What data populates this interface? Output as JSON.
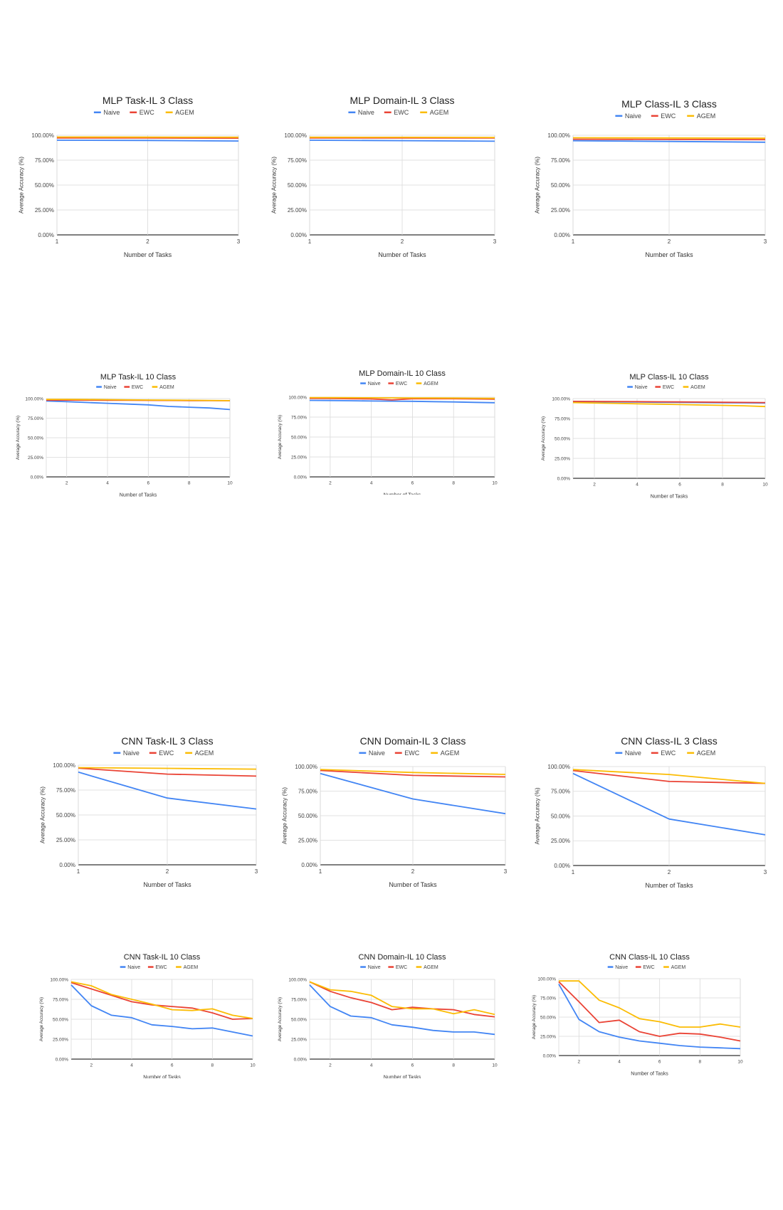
{
  "colors": {
    "naive": "#4285f4",
    "ewc": "#ea4335",
    "agem": "#fbbc04",
    "grid": "#d9d9d9",
    "axis": "#333333"
  },
  "chart_data": [
    {
      "type": "line",
      "title": "MLP Task-IL 3 Class",
      "xlabel": "Number of Tasks",
      "ylabel": "Average Accuracy (%)",
      "ylim": [
        0,
        100
      ],
      "yticks": [
        "100.00%",
        "75.00%",
        "50.00%",
        "25.00%",
        "0.00%"
      ],
      "x": [
        1,
        2,
        3
      ],
      "xticks": [
        "1",
        "2",
        "3"
      ],
      "legend": "top-left",
      "series": [
        {
          "name": "Naive",
          "values": [
            95.0,
            94.8,
            94.2
          ]
        },
        {
          "name": "EWC",
          "values": [
            97.2,
            97.2,
            97.1
          ]
        },
        {
          "name": "AGEM",
          "values": [
            98.2,
            98.1,
            98.0
          ]
        }
      ]
    },
    {
      "type": "line",
      "title": "MLP Domain-IL 3 Class",
      "xlabel": "Number of Tasks",
      "ylabel": "Average Accuracy (%)",
      "ylim": [
        0,
        100
      ],
      "yticks": [
        "100.00%",
        "75.00%",
        "50.00%",
        "25.00%",
        "0.00%"
      ],
      "x": [
        1,
        2,
        3
      ],
      "xticks": [
        "1",
        "2",
        "3"
      ],
      "legend": "top-left",
      "series": [
        {
          "name": "Naive",
          "values": [
            95.0,
            94.6,
            94.0
          ]
        },
        {
          "name": "EWC",
          "values": [
            97.3,
            97.2,
            97.2
          ]
        },
        {
          "name": "AGEM",
          "values": [
            98.0,
            97.9,
            97.8
          ]
        }
      ]
    },
    {
      "type": "line",
      "title": "MLP Class-IL 3 Class",
      "xlabel": "Number of Tasks",
      "ylabel": "Average Accuracy (%)",
      "ylim": [
        0,
        100
      ],
      "yticks": [
        "100.00%",
        "75.00%",
        "50.00%",
        "25.00%",
        "0.00%"
      ],
      "x": [
        1,
        2,
        3
      ],
      "xticks": [
        "1",
        "2",
        "3"
      ],
      "legend": "top-left",
      "series": [
        {
          "name": "Naive",
          "values": [
            94.5,
            93.8,
            93.0
          ]
        },
        {
          "name": "EWC",
          "values": [
            96.0,
            95.8,
            95.6
          ]
        },
        {
          "name": "AGEM",
          "values": [
            97.5,
            97.3,
            97.0
          ]
        }
      ]
    },
    {
      "type": "line",
      "title": "MLP Task-IL 10 Class",
      "xlabel": "Number of Tasks",
      "ylabel": "Average Accuracy (%)",
      "ylim": [
        0,
        100
      ],
      "yticks": [
        "100.00%",
        "75.00%",
        "50.00%",
        "25.00%",
        "0.00%"
      ],
      "x": [
        1,
        2,
        3,
        4,
        5,
        6,
        7,
        8,
        9,
        10
      ],
      "xticks": [
        "2",
        "4",
        "6",
        "8",
        "10"
      ],
      "legend": "top-left",
      "series": [
        {
          "name": "Naive",
          "values": [
            97,
            96,
            95,
            94,
            93,
            92,
            90,
            89,
            88,
            86
          ]
        },
        {
          "name": "EWC",
          "values": [
            98,
            98,
            98,
            97.8,
            97.8,
            97.7,
            97.6,
            97.5,
            97.4,
            97.3
          ]
        },
        {
          "name": "AGEM",
          "values": [
            99,
            99,
            98.8,
            98.6,
            98.4,
            98.2,
            98,
            97.8,
            97.6,
            97.4
          ]
        }
      ]
    },
    {
      "type": "line",
      "title": "MLP Domain-IL 10 Class",
      "xlabel": "Number of Tasks",
      "ylabel": "Average Accuracy (%)",
      "ylim": [
        0,
        100
      ],
      "yticks": [
        "100.00%",
        "75.00%",
        "50.00%",
        "25.00%",
        "0.00%"
      ],
      "x": [
        1,
        2,
        3,
        4,
        5,
        6,
        7,
        8,
        9,
        10
      ],
      "xticks": [
        "2",
        "4",
        "6",
        "8",
        "10"
      ],
      "legend": "top-left",
      "series": [
        {
          "name": "Naive",
          "values": [
            96,
            95.8,
            95.5,
            95.2,
            95,
            94.8,
            94.4,
            94,
            93.5,
            93
          ]
        },
        {
          "name": "EWC",
          "values": [
            98.5,
            98.3,
            98,
            97.8,
            96.5,
            98,
            98,
            98,
            97.8,
            97.5
          ]
        },
        {
          "name": "AGEM",
          "values": [
            99.5,
            99.4,
            99.3,
            99.2,
            99.1,
            99,
            98.9,
            98.8,
            98.7,
            98.5
          ]
        }
      ]
    },
    {
      "type": "line",
      "title": "MLP Class-IL 10 Class",
      "xlabel": "Number of Tasks",
      "ylabel": "Average Accuracy (%)",
      "ylim": [
        0,
        100
      ],
      "yticks": [
        "100.00%",
        "75.00%",
        "50.00%",
        "25.00%",
        "0.00%"
      ],
      "x": [
        1,
        2,
        3,
        4,
        5,
        6,
        7,
        8,
        9,
        10
      ],
      "xticks": [
        "2",
        "4",
        "6",
        "8",
        "10"
      ],
      "legend": "top-left",
      "series": [
        {
          "name": "Naive",
          "values": [
            96,
            96,
            95.8,
            95.6,
            95.4,
            95.2,
            95,
            94.8,
            94.6,
            94.5
          ]
        },
        {
          "name": "EWC",
          "values": [
            96.5,
            96.4,
            96.3,
            96.2,
            96,
            95.8,
            95.6,
            95.4,
            95.2,
            95
          ]
        },
        {
          "name": "AGEM",
          "values": [
            95,
            94.5,
            94,
            93.5,
            93,
            92.5,
            92,
            91.5,
            91,
            90
          ]
        }
      ]
    },
    {
      "type": "line",
      "title": "CNN Task-IL 3 Class",
      "xlabel": "Number of Tasks",
      "ylabel": "Average Accuracy (%)",
      "ylim": [
        0,
        100
      ],
      "yticks": [
        "100.00%",
        "75.00%",
        "50.00%",
        "25.00%",
        "0.00%"
      ],
      "x": [
        1,
        2,
        3
      ],
      "xticks": [
        "1",
        "2",
        "3"
      ],
      "legend": "top-left",
      "series": [
        {
          "name": "Naive",
          "values": [
            93,
            67,
            56
          ]
        },
        {
          "name": "EWC",
          "values": [
            97,
            91,
            89
          ]
        },
        {
          "name": "AGEM",
          "values": [
            97.5,
            96.8,
            96
          ]
        }
      ]
    },
    {
      "type": "line",
      "title": "CNN Domain-IL 3 Class",
      "xlabel": "Number of Tasks",
      "ylabel": "Average Accuracy (%)",
      "ylim": [
        0,
        100
      ],
      "yticks": [
        "100.00%",
        "75.00%",
        "50.00%",
        "25.00%",
        "0.00%"
      ],
      "x": [
        1,
        2,
        3
      ],
      "xticks": [
        "1",
        "2",
        "3"
      ],
      "legend": "top-left",
      "series": [
        {
          "name": "Naive",
          "values": [
            93,
            67,
            52
          ]
        },
        {
          "name": "EWC",
          "values": [
            96,
            91,
            89.5
          ]
        },
        {
          "name": "AGEM",
          "values": [
            97,
            94,
            92
          ]
        }
      ]
    },
    {
      "type": "line",
      "title": "CNN Class-IL 3 Class",
      "xlabel": "Number of Tasks",
      "ylabel": "Average Accuracy (%)",
      "ylim": [
        0,
        100
      ],
      "yticks": [
        "100.00%",
        "75.00%",
        "50.00%",
        "25.00%",
        "0.00%"
      ],
      "x": [
        1,
        2,
        3
      ],
      "xticks": [
        "1",
        "2",
        "3"
      ],
      "legend": "top-left",
      "series": [
        {
          "name": "Naive",
          "values": [
            93,
            47,
            31
          ]
        },
        {
          "name": "EWC",
          "values": [
            96,
            85,
            83
          ]
        },
        {
          "name": "AGEM",
          "values": [
            97,
            92,
            83
          ]
        }
      ]
    },
    {
      "type": "line",
      "title": "CNN Task-IL 10 Class",
      "xlabel": "Number of Tasks",
      "ylabel": "Average Accuracy (%)",
      "ylim": [
        0,
        100
      ],
      "yticks": [
        "100.00%",
        "75.00%",
        "50.00%",
        "25.00%",
        "0.00%"
      ],
      "x": [
        1,
        2,
        3,
        4,
        5,
        6,
        7,
        8,
        9,
        10
      ],
      "xticks": [
        "2",
        "4",
        "6",
        "8",
        "10"
      ],
      "legend": "top-left",
      "series": [
        {
          "name": "Naive",
          "values": [
            93,
            67,
            55,
            52,
            43,
            41,
            38,
            39,
            34,
            29
          ]
        },
        {
          "name": "EWC",
          "values": [
            96,
            88,
            80,
            72,
            68,
            66,
            64,
            58,
            50,
            51
          ]
        },
        {
          "name": "AGEM",
          "values": [
            97,
            92,
            81,
            75,
            69,
            62,
            61,
            63,
            55,
            51
          ]
        }
      ]
    },
    {
      "type": "line",
      "title": "CNN Domain-IL 10 Class",
      "xlabel": "Number of Tasks",
      "ylabel": "Average Accuracy (%)",
      "ylim": [
        0,
        100
      ],
      "yticks": [
        "100.00%",
        "75.00%",
        "50.00%",
        "25.00%",
        "0.00%"
      ],
      "x": [
        1,
        2,
        3,
        4,
        5,
        6,
        7,
        8,
        9,
        10
      ],
      "xticks": [
        "2",
        "4",
        "6",
        "8",
        "10"
      ],
      "legend": "top-left",
      "series": [
        {
          "name": "Naive",
          "values": [
            93,
            66,
            54,
            52,
            43,
            40,
            36,
            34,
            34,
            31
          ]
        },
        {
          "name": "EWC",
          "values": [
            97,
            85,
            77,
            71,
            62,
            65,
            63,
            62,
            56,
            53
          ]
        },
        {
          "name": "AGEM",
          "values": [
            97,
            87,
            85,
            80,
            66,
            63,
            63,
            57,
            62,
            56
          ]
        }
      ]
    },
    {
      "type": "line",
      "title": "CNN Class-IL 10 Class",
      "xlabel": "Number of Tasks",
      "ylabel": "Average Accuracy (%)",
      "ylim": [
        0,
        100
      ],
      "yticks": [
        "100.00%",
        "75.00%",
        "50.00%",
        "25.00%",
        "0.00%"
      ],
      "x": [
        1,
        2,
        3,
        4,
        5,
        6,
        7,
        8,
        9,
        10
      ],
      "xticks": [
        "2",
        "4",
        "6",
        "8",
        "10"
      ],
      "legend": "top-left",
      "series": [
        {
          "name": "Naive",
          "values": [
            93,
            47,
            31,
            24,
            19,
            16,
            13,
            11,
            10,
            9
          ]
        },
        {
          "name": "EWC",
          "values": [
            96,
            70,
            43,
            46,
            31,
            25,
            29,
            28,
            24,
            19
          ]
        },
        {
          "name": "AGEM",
          "values": [
            97,
            97,
            72,
            62,
            48,
            44,
            37,
            37,
            41,
            37
          ]
        }
      ]
    }
  ]
}
